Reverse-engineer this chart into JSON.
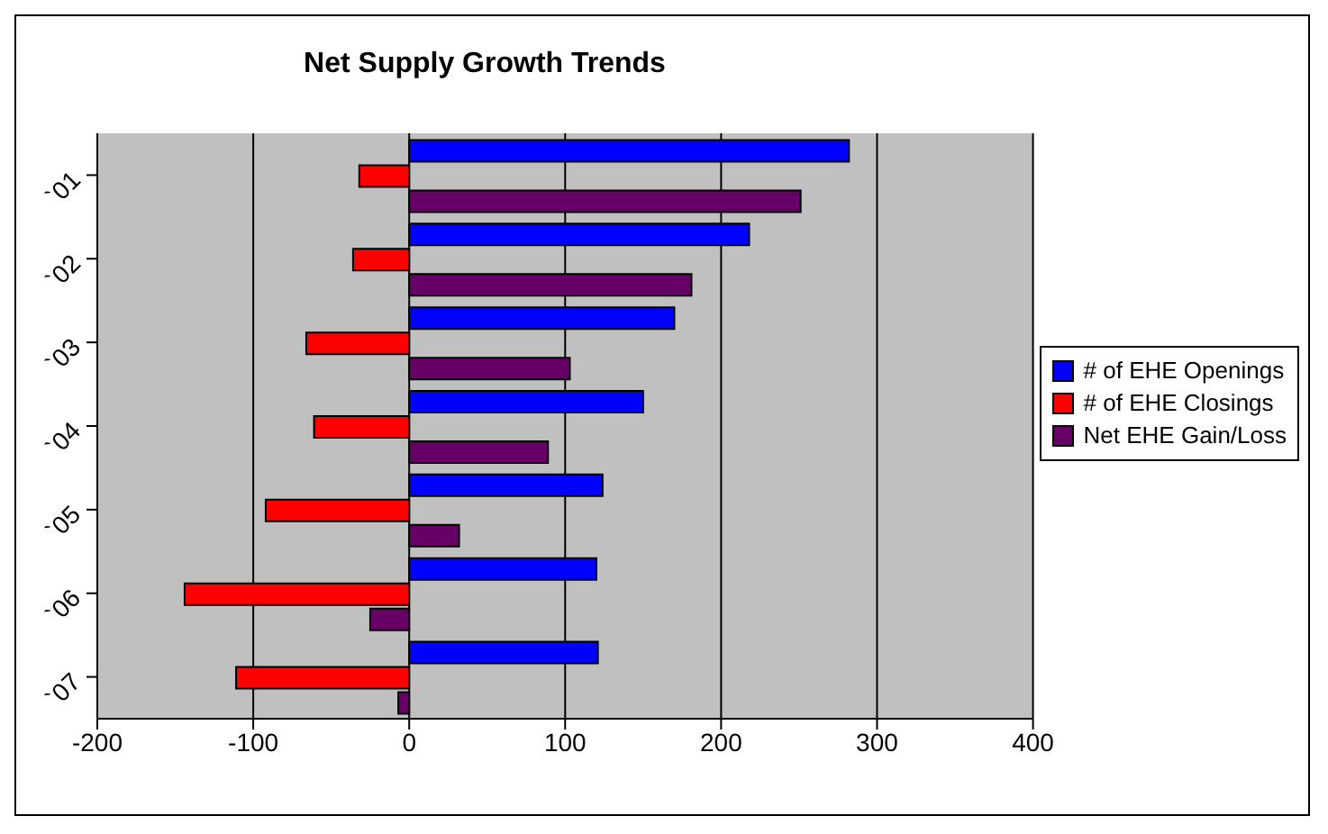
{
  "chart_data": {
    "type": "bar",
    "orientation": "horizontal",
    "title": "Net Supply Growth Trends",
    "categories": [
      "`01",
      "`02",
      "`03",
      "`04",
      "`05",
      "`06",
      "`07"
    ],
    "series": [
      {
        "name": "# of EHE Openings",
        "color": "#0000ff",
        "values": [
          282,
          218,
          170,
          150,
          124,
          120,
          121
        ]
      },
      {
        "name": "# of EHE Closings",
        "color": "#ff0000",
        "values": [
          -32,
          -36,
          -66,
          -61,
          -92,
          -144,
          -111
        ]
      },
      {
        "name": "Net EHE Gain/Loss",
        "color": "#660066",
        "values": [
          251,
          181,
          103,
          89,
          32,
          -25,
          -7
        ]
      }
    ],
    "xlim": [
      -200,
      400
    ],
    "xticks": [
      -200,
      -100,
      0,
      100,
      200,
      300,
      400
    ],
    "grid": "x",
    "legend": "right"
  }
}
